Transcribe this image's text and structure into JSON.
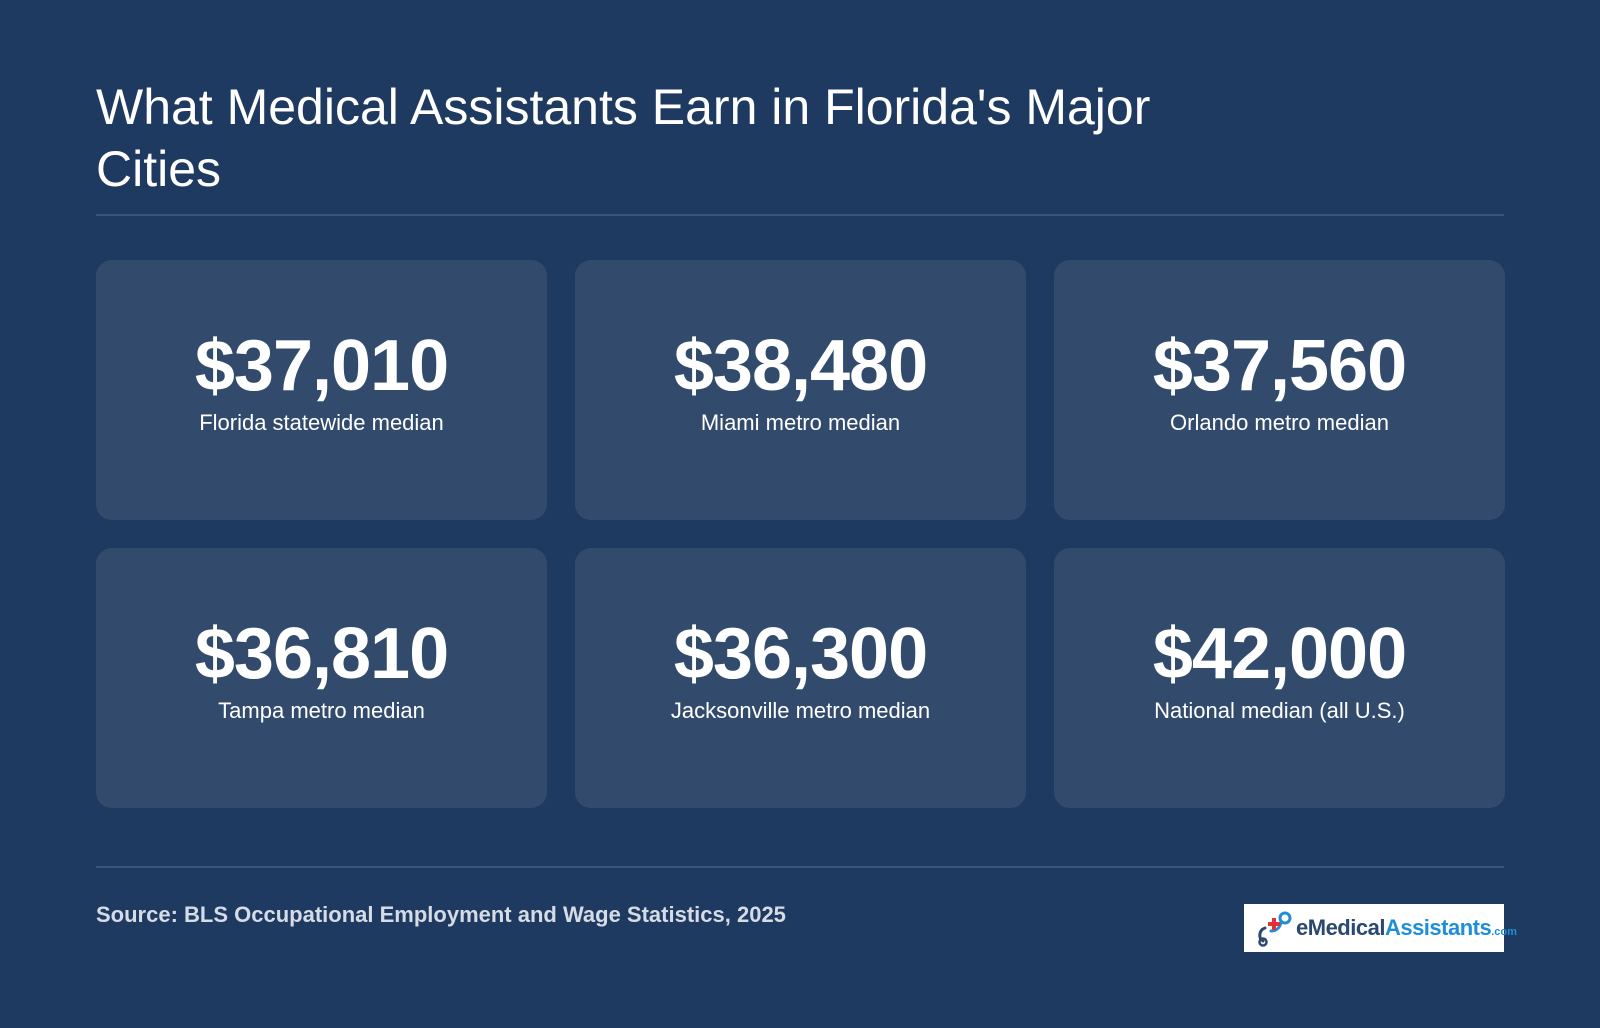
{
  "title": "What Medical Assistants Earn in Florida's Major Cities",
  "cards": [
    {
      "value": "$37,010",
      "label": "Florida statewide median"
    },
    {
      "value": "$38,480",
      "label": "Miami metro median"
    },
    {
      "value": "$37,560",
      "label": "Orlando metro median"
    },
    {
      "value": "$36,810",
      "label": "Tampa metro median"
    },
    {
      "value": "$36,300",
      "label": "Jacksonville metro median"
    },
    {
      "value": "$42,000",
      "label": "National median (all U.S.)"
    }
  ],
  "source": "Source: BLS Occupational Employment and Wage Statistics, 2025",
  "logo": {
    "prefix": "e",
    "part1": "Medical",
    "part2": "Assistants",
    "suffix": ".com",
    "icon": "medical-cross-logo-icon"
  },
  "colors": {
    "background": "#1f3a60",
    "card": "#324b6d",
    "accent": "#1e8fd6",
    "logo_red": "#e0303a"
  }
}
